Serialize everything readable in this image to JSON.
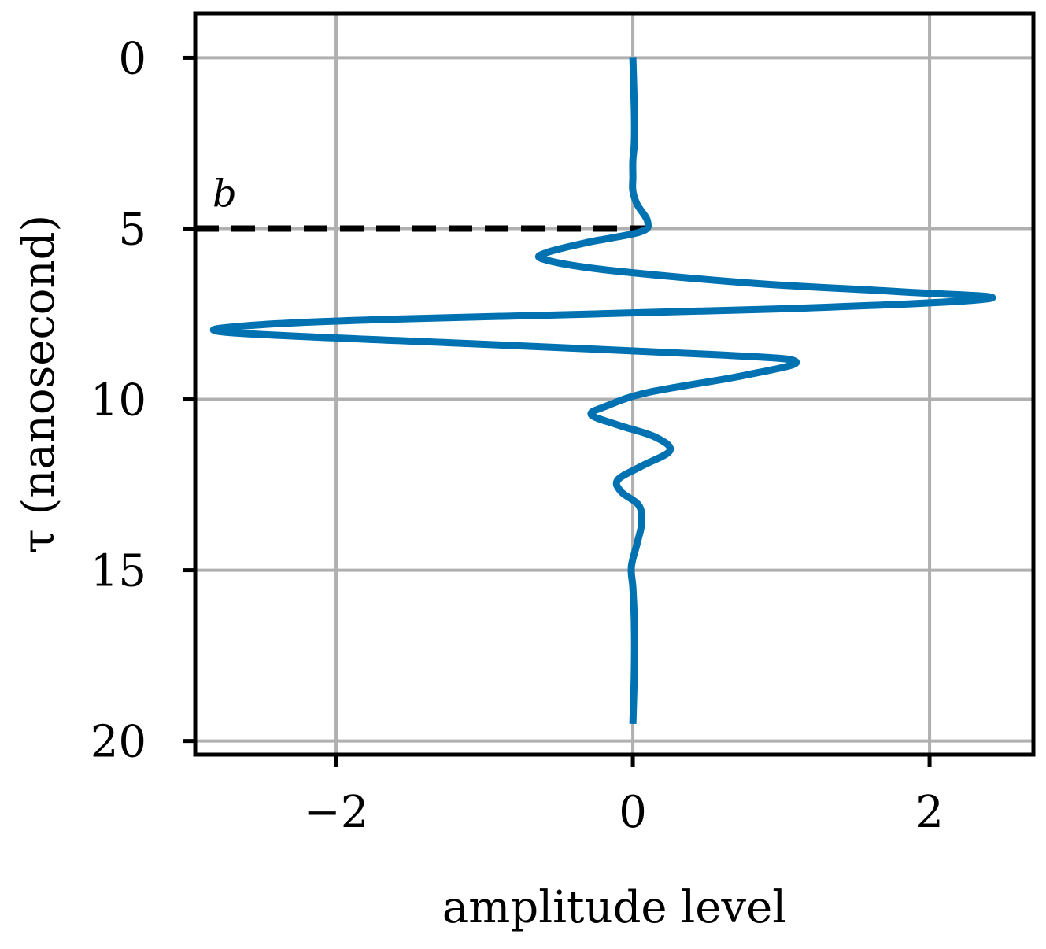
{
  "chart_data": {
    "type": "line",
    "xlabel": "amplitude level",
    "ylabel": "τ (nanosecond)",
    "xlim": [
      -2.95,
      2.7
    ],
    "ylim": [
      20.4,
      -1.3
    ],
    "y_inverted": true,
    "grid": true,
    "xticks": [
      -2,
      0,
      2
    ],
    "xtick_labels": [
      "−2",
      "0",
      "2"
    ],
    "yticks": [
      0,
      5,
      10,
      15,
      20
    ],
    "ytick_labels": [
      "0",
      "5",
      "10",
      "15",
      "20"
    ],
    "colors": {
      "series": "#0072b2",
      "grid": "#b0b0b0",
      "axis": "#000000",
      "marker_line": "#000000"
    },
    "series": [
      {
        "x": [
          0.0,
          0.01,
          0.01,
          0.0,
          0.0,
          0.0,
          0.03,
          0.1,
          0.05,
          -0.3,
          -0.58,
          -0.6,
          -0.2,
          0.8,
          1.8,
          2.4,
          1.0,
          -1.6,
          -2.62,
          -2.7,
          -1.2,
          0.6,
          1.1,
          0.75,
          0.1,
          -0.18,
          -0.28,
          -0.1,
          0.15,
          0.25,
          0.06,
          -0.1,
          -0.08,
          0.04,
          0.06,
          0.03,
          -0.01,
          0.0,
          0.01,
          0.01,
          0.0
        ],
        "y": [
          0.0,
          1.5,
          2.5,
          3.0,
          3.5,
          3.9,
          4.3,
          4.8,
          5.1,
          5.4,
          5.7,
          5.9,
          6.2,
          6.6,
          6.85,
          7.05,
          7.35,
          7.65,
          7.85,
          8.05,
          8.35,
          8.7,
          8.9,
          9.3,
          9.8,
          10.2,
          10.45,
          10.75,
          11.1,
          11.5,
          11.95,
          12.35,
          12.7,
          13.1,
          13.6,
          14.2,
          14.9,
          15.5,
          16.5,
          18.0,
          19.5
        ]
      }
    ],
    "annotations": [
      {
        "text": "b",
        "y": 5.0,
        "x_start": -2.95,
        "x_end": 0.1,
        "style": "dashed"
      }
    ]
  }
}
